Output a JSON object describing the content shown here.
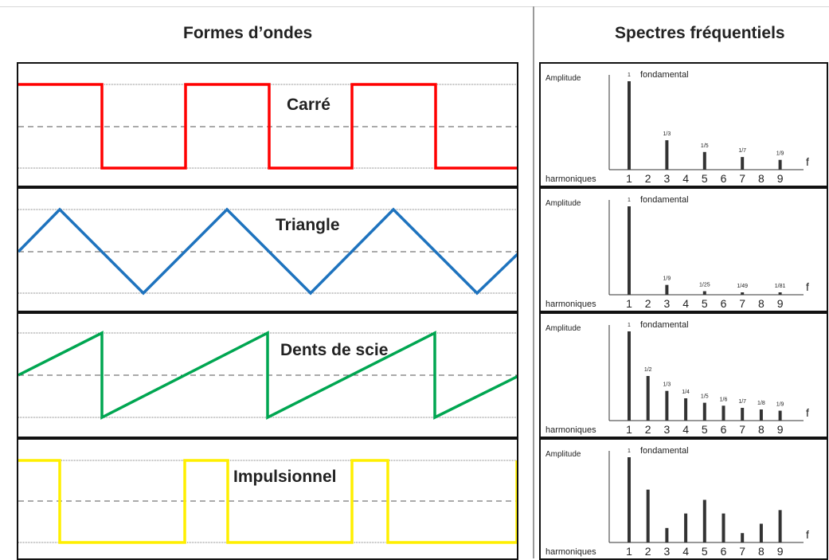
{
  "headings": {
    "waveforms": "Formes d’ondes",
    "spectra": "Spectres fréquentiels"
  },
  "waves": [
    {
      "id": "square",
      "label": "Carré",
      "color": "#ff0000"
    },
    {
      "id": "triangle",
      "label": "Triangle",
      "color": "#1e73be"
    },
    {
      "id": "sawtooth",
      "label": "Dents de scie",
      "color": "#00a651"
    },
    {
      "id": "pulse",
      "label": "Impulsionnel",
      "color": "#ffef00"
    }
  ],
  "spectrum_common": {
    "amplitude_label": "Amplitude",
    "fundamental_label": "fondamental",
    "harmonics_label": "harmoniques",
    "f_label": "f",
    "harmonic_numbers": [
      "1",
      "2",
      "3",
      "4",
      "5",
      "6",
      "7",
      "8",
      "9"
    ]
  },
  "chart_data": [
    {
      "type": "bar",
      "wave": "Carré",
      "categories": [
        1,
        2,
        3,
        4,
        5,
        6,
        7,
        8,
        9
      ],
      "values": [
        1,
        0,
        0.333,
        0,
        0.2,
        0,
        0.143,
        0,
        0.111
      ],
      "bar_labels": [
        "1",
        "",
        "1/3",
        "",
        "1/5",
        "",
        "1/7",
        "",
        "1/9"
      ],
      "xlabel": "harmoniques",
      "ylabel": "Amplitude"
    },
    {
      "type": "bar",
      "wave": "Triangle",
      "categories": [
        1,
        2,
        3,
        4,
        5,
        6,
        7,
        8,
        9
      ],
      "values": [
        1,
        0,
        0.111,
        0,
        0.04,
        0,
        0.0204,
        0,
        0.0123
      ],
      "bar_labels": [
        "1",
        "",
        "1/9",
        "",
        "1/25",
        "",
        "1/49",
        "",
        "1/81"
      ],
      "xlabel": "harmoniques",
      "ylabel": "Amplitude"
    },
    {
      "type": "bar",
      "wave": "Dents de scie",
      "categories": [
        1,
        2,
        3,
        4,
        5,
        6,
        7,
        8,
        9
      ],
      "values": [
        1,
        0.5,
        0.333,
        0.25,
        0.2,
        0.167,
        0.143,
        0.125,
        0.111
      ],
      "bar_labels": [
        "1",
        "1/2",
        "1/3",
        "1/4",
        "1/5",
        "1/6",
        "1/7",
        "1/8",
        "1/9"
      ],
      "xlabel": "harmoniques",
      "ylabel": "Amplitude"
    },
    {
      "type": "bar",
      "wave": "Impulsionnel",
      "categories": [
        1,
        2,
        3,
        4,
        5,
        6,
        7,
        8,
        9
      ],
      "values": [
        1,
        0.62,
        0.17,
        0.34,
        0.5,
        0.34,
        0.11,
        0.22,
        0.38
      ],
      "bar_labels": [
        "1",
        "",
        "",
        "",
        "",
        "",
        "",
        "",
        ""
      ],
      "xlabel": "harmoniques",
      "ylabel": "Amplitude"
    }
  ]
}
